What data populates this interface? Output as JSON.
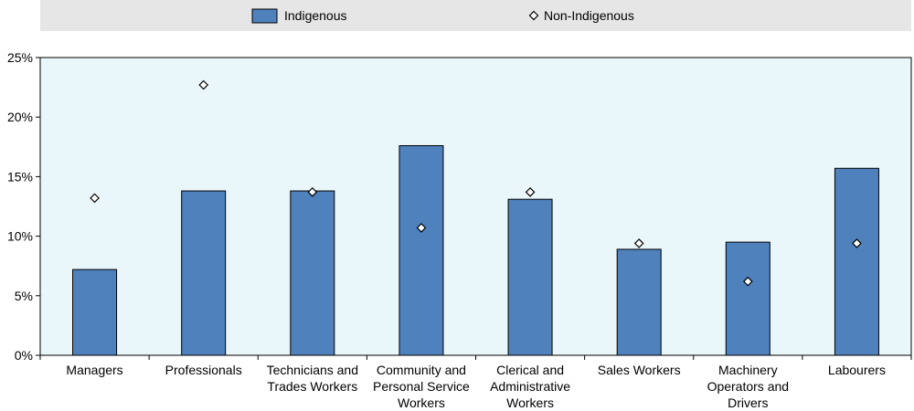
{
  "chart_data": {
    "type": "bar",
    "title": "",
    "xlabel": "",
    "ylabel": "",
    "ylim": [
      0,
      25
    ],
    "yticks": [
      0,
      5,
      10,
      15,
      20,
      25
    ],
    "ytick_format": "%",
    "grid": false,
    "legend_position": "top",
    "categories": [
      [
        "Managers"
      ],
      [
        "Professionals"
      ],
      [
        "Technicians and",
        "Trades Workers"
      ],
      [
        "Community and",
        "Personal Service",
        "Workers"
      ],
      [
        "Clerical and",
        "Administrative",
        "Workers"
      ],
      [
        "Sales Workers"
      ],
      [
        "Machinery",
        "Operators and",
        "Drivers"
      ],
      [
        "Labourers"
      ]
    ],
    "series": [
      {
        "name": "Indigenous",
        "mark": "bar",
        "color": "#4f81bd",
        "values": [
          7.2,
          13.8,
          13.8,
          17.6,
          13.1,
          8.9,
          9.5,
          15.7
        ]
      },
      {
        "name": "Non-Indigenous",
        "mark": "diamond",
        "color": "#ffffff",
        "values": [
          13.2,
          22.7,
          13.7,
          10.7,
          13.7,
          9.4,
          6.2,
          9.4
        ]
      }
    ],
    "colors": {
      "plot_background": "#eaf7fa",
      "legend_background": "#e6e6e6",
      "bar_stroke": "#000000"
    }
  }
}
